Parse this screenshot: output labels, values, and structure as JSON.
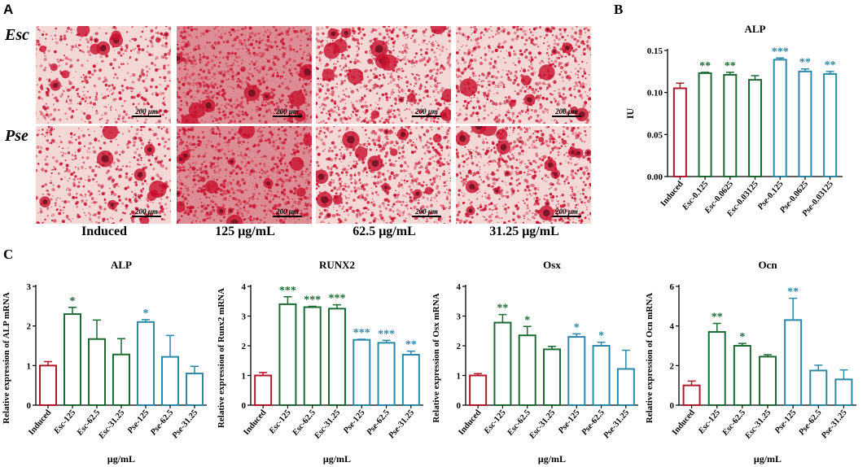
{
  "panel_a": {
    "letter": "A",
    "rows": [
      "Esc",
      "Pse"
    ],
    "columns": [
      "Induced",
      "125 μg/mL",
      "62.5 μg/mL",
      "31.25 μg/mL"
    ],
    "scale_bar": "200 μm"
  },
  "colors": {
    "induced": "#b2182b",
    "esc": "#1b6b32",
    "pse": "#2a89a8",
    "stain_bg": "#f3d8d6",
    "stain_dot": "#c8102e",
    "stain_dark": "#6b1020"
  },
  "chart_data": [
    {
      "id": "B",
      "letter": "B",
      "type": "bar",
      "title": "ALP",
      "ylabel": "IU",
      "xlabel": "",
      "ylim": [
        0,
        0.15
      ],
      "yticks": [
        0.0,
        0.05,
        0.1,
        0.15
      ],
      "ytick_labels": [
        "0.00",
        "0.05",
        "0.10",
        "0.15"
      ],
      "categories": [
        "Induced",
        "Esc-0.125",
        "Esc-0.0625",
        "Esc-0.03125",
        "Pse-0.125",
        "Pse-0.0625",
        "Pse-0.03125"
      ],
      "values": [
        0.105,
        0.123,
        0.121,
        0.115,
        0.139,
        0.125,
        0.122
      ],
      "errors": [
        0.006,
        0.001,
        0.003,
        0.005,
        0.002,
        0.003,
        0.003
      ],
      "groups": [
        "induced",
        "esc",
        "esc",
        "esc",
        "pse",
        "pse",
        "pse"
      ],
      "significance": [
        "",
        "**",
        "**",
        "",
        "***",
        "**",
        "**"
      ]
    },
    {
      "id": "C1",
      "letter": "C",
      "type": "bar",
      "title": "ALP",
      "ylabel": "Relative expression of ALP mRNA",
      "xlabel": "μg/mL",
      "ylim": [
        0,
        3
      ],
      "yticks": [
        0,
        1,
        2,
        3
      ],
      "ytick_labels": [
        "0",
        "1",
        "2",
        "3"
      ],
      "categories": [
        "Induced",
        "Esc-125",
        "Esc-62.5",
        "Esc-31.25",
        "Pse-125",
        "Pse-62.5",
        "Pse-31.25"
      ],
      "values": [
        1.0,
        2.3,
        1.67,
        1.28,
        2.1,
        1.22,
        0.8
      ],
      "errors": [
        0.1,
        0.17,
        0.48,
        0.4,
        0.06,
        0.54,
        0.18
      ],
      "groups": [
        "induced",
        "esc",
        "esc",
        "esc",
        "pse",
        "pse",
        "pse"
      ],
      "significance": [
        "",
        "*",
        "",
        "",
        "*",
        "",
        ""
      ]
    },
    {
      "id": "C2",
      "letter": "",
      "type": "bar",
      "title": "RUNX2",
      "ylabel": "Relative expression of Runx2 mRNA",
      "xlabel": "μg/mL",
      "ylim": [
        0,
        4
      ],
      "yticks": [
        0,
        1,
        2,
        3,
        4
      ],
      "ytick_labels": [
        "0",
        "1",
        "2",
        "3",
        "4"
      ],
      "categories": [
        "Induced",
        "Esc-125",
        "Esc-62.5",
        "Esc-31.25",
        "Pse-125",
        "Pse-62.5",
        "Pse-31.25"
      ],
      "values": [
        1.0,
        3.4,
        3.3,
        3.25,
        2.2,
        2.1,
        1.7
      ],
      "errors": [
        0.1,
        0.25,
        0.03,
        0.13,
        0.02,
        0.08,
        0.12
      ],
      "groups": [
        "induced",
        "esc",
        "esc",
        "esc",
        "pse",
        "pse",
        "pse"
      ],
      "significance": [
        "",
        "***",
        "***",
        "***",
        "***",
        "***",
        "**"
      ]
    },
    {
      "id": "C3",
      "letter": "",
      "type": "bar",
      "title": "Osx",
      "ylabel": "Relative expression of Osx mRNA",
      "xlabel": "μg/mL",
      "ylim": [
        0,
        4
      ],
      "yticks": [
        0,
        1,
        2,
        3,
        4
      ],
      "ytick_labels": [
        "0",
        "1",
        "2",
        "3",
        "4"
      ],
      "categories": [
        "Induced",
        "Esc-125",
        "Esc-62.5",
        "Esc-31.25",
        "Pse-125",
        "Pse-62.5",
        "Pse-31.25"
      ],
      "values": [
        1.0,
        2.78,
        2.35,
        1.88,
        2.3,
        2.0,
        1.22
      ],
      "errors": [
        0.06,
        0.27,
        0.3,
        0.1,
        0.1,
        0.12,
        0.63
      ],
      "groups": [
        "induced",
        "esc",
        "esc",
        "esc",
        "pse",
        "pse",
        "pse"
      ],
      "significance": [
        "",
        "**",
        "*",
        "",
        "*",
        "*",
        ""
      ]
    },
    {
      "id": "C4",
      "letter": "",
      "type": "bar",
      "title": "Ocn",
      "ylabel": "Relative expression of Ocn mRNA",
      "xlabel": "μg/mL",
      "ylim": [
        0,
        6
      ],
      "yticks": [
        0,
        2,
        4,
        6
      ],
      "ytick_labels": [
        "0",
        "2",
        "4",
        "6"
      ],
      "categories": [
        "Induced",
        "Esc-125",
        "Esc-62.5",
        "Esc-31.25",
        "Pse-125",
        "Pse-62.5",
        "Pse-31.25"
      ],
      "values": [
        1.0,
        3.7,
        3.0,
        2.45,
        4.3,
        1.75,
        1.3
      ],
      "errors": [
        0.22,
        0.43,
        0.12,
        0.1,
        1.1,
        0.27,
        0.48
      ],
      "groups": [
        "induced",
        "esc",
        "esc",
        "esc",
        "pse",
        "pse",
        "pse"
      ],
      "significance": [
        "",
        "**",
        "*",
        "",
        "**",
        "",
        ""
      ]
    }
  ]
}
